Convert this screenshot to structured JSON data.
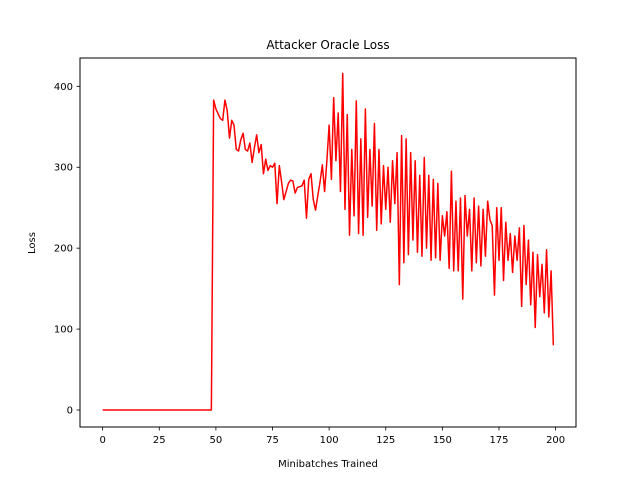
{
  "chart_data": {
    "type": "line",
    "title": "Attacker Oracle Loss",
    "xlabel": "Minibatches Trained",
    "ylabel": "Loss",
    "xlim": [
      -10,
      209
    ],
    "ylim": [
      -21,
      435
    ],
    "x_ticks": [
      0,
      25,
      50,
      75,
      100,
      125,
      150,
      175,
      200
    ],
    "y_ticks": [
      0,
      100,
      200,
      300,
      400
    ],
    "grid": false,
    "series": [
      {
        "color": "#ff0000",
        "x": [
          0,
          48,
          49,
          50,
          51,
          52,
          53,
          54,
          55,
          56,
          57,
          58,
          59,
          60,
          61,
          62,
          63,
          64,
          65,
          66,
          67,
          68,
          69,
          70,
          71,
          72,
          73,
          74,
          75,
          76,
          77,
          78,
          79,
          80,
          81,
          82,
          83,
          84,
          85,
          86,
          87,
          88,
          89,
          90,
          91,
          92,
          93,
          94,
          95,
          96,
          97,
          98,
          99,
          100,
          101,
          102,
          103,
          104,
          105,
          106,
          107,
          108,
          109,
          110,
          111,
          112,
          113,
          114,
          115,
          116,
          117,
          118,
          119,
          120,
          121,
          122,
          123,
          124,
          125,
          126,
          127,
          128,
          129,
          130,
          131,
          132,
          133,
          134,
          135,
          136,
          137,
          138,
          139,
          140,
          141,
          142,
          143,
          144,
          145,
          146,
          147,
          148,
          149,
          150,
          151,
          152,
          153,
          154,
          155,
          156,
          157,
          158,
          159,
          160,
          161,
          162,
          163,
          164,
          165,
          166,
          167,
          168,
          169,
          170,
          171,
          172,
          173,
          174,
          175,
          176,
          177,
          178,
          179,
          180,
          181,
          182,
          183,
          184,
          185,
          186,
          187,
          188,
          189,
          190,
          191,
          192,
          193,
          194,
          195,
          196,
          197,
          198,
          199
        ],
        "y": [
          0,
          0,
          383,
          372,
          366,
          360,
          358,
          383,
          370,
          336,
          358,
          352,
          322,
          320,
          334,
          342,
          322,
          320,
          330,
          306,
          324,
          340,
          318,
          328,
          292,
          310,
          296,
          302,
          300,
          305,
          255,
          302,
          282,
          260,
          270,
          280,
          284,
          283,
          268,
          275,
          276,
          277,
          284,
          237,
          285,
          292,
          260,
          247,
          265,
          282,
          303,
          270,
          308,
          352,
          285,
          386,
          308,
          367,
          270,
          416,
          248,
          365,
          216,
          322,
          240,
          382,
          218,
          335,
          216,
          372,
          238,
          322,
          252,
          354,
          222,
          322,
          230,
          302,
          248,
          300,
          232,
          308,
          255,
          318,
          155,
          339,
          182,
          335,
          192,
          318,
          210,
          308,
          195,
          290,
          190,
          312,
          200,
          290,
          185,
          285,
          188,
          280,
          185,
          240,
          215,
          245,
          175,
          295,
          172,
          258,
          172,
          262,
          137,
          265,
          215,
          248,
          172,
          262,
          182,
          252,
          178,
          248,
          190,
          258,
          235,
          228,
          142,
          250,
          185,
          250,
          160,
          232,
          185,
          218,
          170,
          215,
          185,
          225,
          128,
          228,
          155,
          210,
          130,
          195,
          102,
          192,
          140,
          180,
          120,
          198,
          115,
          172,
          80
        ]
      }
    ]
  }
}
